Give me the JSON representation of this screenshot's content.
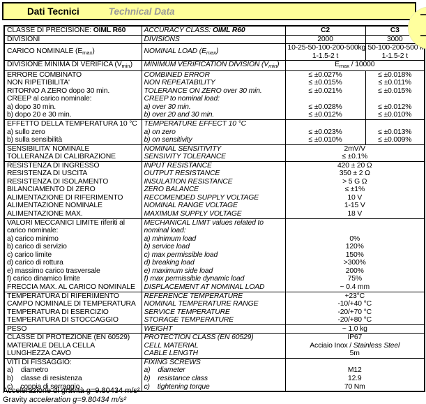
{
  "colors": {
    "banner_yellow": "#ffff99",
    "banner_border": "#000000",
    "technical_title_gray": "#9a9a9a",
    "table_border": "#000000",
    "balloon_yellow": "#ffff9e"
  },
  "banner": {
    "title_it": "Dati Tecnici",
    "title_en": "Technical Data"
  },
  "table": {
    "header": {
      "it_label": "CLASSE DI PRECISIONE:",
      "it_value": "OIML R60",
      "en_label": "ACCURACY CLASS:",
      "en_value": "OIML R60",
      "c2": "C2",
      "c3": "C3"
    },
    "blocks": [
      {
        "rows": [
          {
            "it": "DIVISIONI",
            "en": "DIVISIONS",
            "c2": "2000",
            "c3": "3000"
          }
        ]
      },
      {
        "rows": [
          {
            "it": "CARICO NOMINALE (E{max})",
            "en": "NOMINAL LOAD (E{max})",
            "c2": [
              "10-25-50-100-200-500kg",
              "1-1.5-2 t"
            ],
            "c3": [
              "50-100-200-500 kg",
              "1-1.5-2 t"
            ]
          }
        ]
      },
      {
        "rows": [
          {
            "it": "DIVISIONE MINIMA DI VERIFICA (V{min})",
            "en": "MINIMUM VERIFICATION DIVISION (V{min})",
            "span": "E{max} / 10000"
          }
        ]
      },
      {
        "rows": [
          {
            "it": "ERRORE COMBINATO",
            "en": "COMBINED ERROR",
            "c2": "≤ ±0.027%",
            "c3": "≤ ±0.018%"
          },
          {
            "it": "NON RIPETIBILITA'",
            "en": "NON REPEATABILITY",
            "c2": "≤ ±0.015%",
            "c3": "≤ ±0.011%"
          },
          {
            "it": "RITORNO A ZERO dopo 30 min.",
            "en": "TOLERANCE ON ZERO over 30 min.",
            "c2": "≤ ±0.021%",
            "c3": "≤ ±0.015%"
          },
          {
            "it": "CREEP al carico nominale:",
            "en": "CREEP to nominal load:",
            "c2": "",
            "c3": ""
          },
          {
            "it": "a) dopo 30 min.",
            "en": "a) over 30 min.",
            "c2": "≤ ±0.028%",
            "c3": "≤ ±0.012%"
          },
          {
            "it": "b) dopo 20 e 30 min.",
            "en": "b) over 20 and 30 min.",
            "c2": "≤ ±0.012%",
            "c3": "≤ ±0.010%"
          }
        ]
      },
      {
        "rows": [
          {
            "it": "EFFETTO DELLA TEMPERATURA 10 °C",
            "en": "TEMPERATURE EFFECT 10 °C",
            "c2": "",
            "c3": ""
          },
          {
            "it": "a) sullo zero",
            "en": "a) on zero",
            "c2": "≤ ±0.023%",
            "c3": "≤ ±0.013%"
          },
          {
            "it": "b) sulla sensibilità",
            "en": "b) on sensitivity",
            "c2": "≤ ±0.010%",
            "c3": "≤ ±0.009%"
          }
        ]
      },
      {
        "rows": [
          {
            "it": "SENSIBILITA' NOMINALE",
            "en": "NOMINAL SENSITIVITY",
            "span": "2mV/V"
          },
          {
            "it": "TOLLERANZA DI CALIBRAZIONE",
            "en": "SENSIVITY TOLERANCE",
            "span": "≤ ±0.1%"
          }
        ]
      },
      {
        "rows": [
          {
            "it": "RESISTENZA DI INGRESSO",
            "en": "INPUT RESISTANCE",
            "span": "420 ± 20 Ω"
          },
          {
            "it": "RESISTENZA DI USCITA",
            "en": "OUTPUT RESISTANCE",
            "span": "350 ± 2 Ω"
          },
          {
            "it": "RESISTENZA DI ISOLAMENTO",
            "en": "INSULATION RESISTANCE",
            "span": "> 5 G Ω"
          },
          {
            "it": "BILANCIAMENTO DI ZERO",
            "en": "ZERO BALANCE",
            "span": "≤ ±1%"
          },
          {
            "it": "ALIMENTAZIONE DI RIFERIMENTO",
            "en": "RECOMENDED SUPPLY VOLTAGE",
            "span": "10 V"
          },
          {
            "it": "ALIMENTAZIONE NOMINALE",
            "en": "NOMINAL RANGE VOLTAGE",
            "span": "1-15 V"
          },
          {
            "it": "ALIMENTAZIONE MAX.",
            "en": "MAXIMUM SUPPLY VOLTAGE",
            "span": "18 V"
          }
        ]
      },
      {
        "rows": [
          {
            "it": "VALORI MECCANICI LIMITE riferiti al",
            "en": "MECHANICAL LIMIT values related to",
            "span": ""
          },
          {
            "it": "carico nominale:",
            "en": "nominal load:",
            "span": ""
          },
          {
            "it": "a) carico minimo",
            "en": "a) minimum load",
            "span": "0%"
          },
          {
            "it": "b) carico di servizio",
            "en": "b) service load",
            "span": "120%"
          },
          {
            "it": "c) carico limite",
            "en": "c) max permissible load",
            "span": "150%"
          },
          {
            "it": "d) carico di rottura",
            "en": "d) breaking load",
            "span": ">300%"
          },
          {
            "it": "e) massimo carico trasversale",
            "en": "e) maximum side load",
            "span": "200%"
          },
          {
            "it": "f) carico dinamico  limite",
            "en": "f) max permissible dynamic load",
            "span": "75%"
          },
          {
            "it": "FRECCIA MAX. AL CARICO NOMINALE",
            "en": "DISPLACEMENT AT NOMINAL LOAD",
            "span": "~ 0.4 mm"
          }
        ]
      },
      {
        "rows": [
          {
            "it": "TEMPERATURA DI RIFERIMENTO",
            "en": "REFERENCE TEMPERATURE",
            "span": "+23°C"
          },
          {
            "it": "CAMPO NOMINALE DI TEMPERATURA",
            "en": "NOMINAL TEMPERATURE RANGE",
            "span": "-10/+40 °C"
          },
          {
            "it": "TEMPERATURA DI ESERCIZIO",
            "en": "SERVICE TEMPERATURE",
            "span": "-20/+70 °C"
          },
          {
            "it": "TEMPERATURA DI STOCCAGGIO",
            "en": "STORAGE TEMPERATURE",
            "span": "-20/+80 °C"
          }
        ]
      },
      {
        "rows": [
          {
            "it": "PESO",
            "en": "WEIGHT",
            "span": "~ 1.0 kg"
          }
        ]
      },
      {
        "rows": [
          {
            "it": "CLASSE DI PROTEZIONE (EN 60529)",
            "en": "PROTECTION CLASS (EN 60529)",
            "span": "IP67"
          },
          {
            "it": "MATERIALE DELLA CELLA",
            "en": "CELL MATERIAL",
            "span": "Acciaio Inox / [[Stainless Steel]]"
          },
          {
            "it": "LUNGHEZZA CAVO",
            "en": "CABLE LENGTH",
            "span": "5m"
          }
        ]
      },
      {
        "rows": [
          {
            "it": "VITI DI FISSAGGIO:",
            "en": "FIXING SCREWS",
            "span": ""
          },
          {
            "it": "a)    diametro",
            "en": "a)    diameter",
            "span": "M12"
          },
          {
            "it": "b)    classe di resistenza",
            "en": "b)    resistance class",
            "span": "12.9"
          },
          {
            "it": "c)    coppia di serraggio",
            "en": "c)    tightening torque",
            "span": "70 Nm"
          }
        ]
      }
    ]
  },
  "footer": {
    "line1": "Accelerazione di gravità g=9.80434 m/s²",
    "line2_roman": "Gravity ",
    "line2_italic": "acceleration g=9.80434 m/s²"
  }
}
